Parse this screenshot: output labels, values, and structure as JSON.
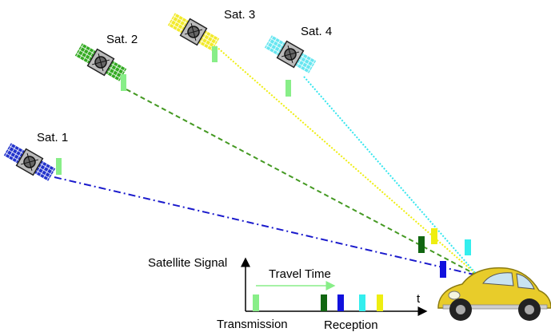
{
  "satellites": [
    {
      "label": "Sat. 1",
      "color": "#2233cc",
      "line_color": "#1a1acc"
    },
    {
      "label": "Sat. 2",
      "color": "#33aa22",
      "line_color": "#449922"
    },
    {
      "label": "Sat. 3",
      "color": "#f2ea2a",
      "line_color": "#eeee11"
    },
    {
      "label": "Sat. 4",
      "color": "#66e6f0",
      "line_color": "#33e6ee"
    }
  ],
  "signal_colors": {
    "transmission": "#88ee88",
    "sat1": "#1111dd",
    "sat2": "#116611",
    "sat3": "#eeee11",
    "sat4": "#33eeee"
  },
  "timeline": {
    "y_axis_label": "Satellite Signal",
    "x_axis_label": "t",
    "travel_time_label": "Travel Time",
    "transmission_label": "Transmission",
    "reception_label": "Reception"
  },
  "car_color": "#e8cc2a"
}
